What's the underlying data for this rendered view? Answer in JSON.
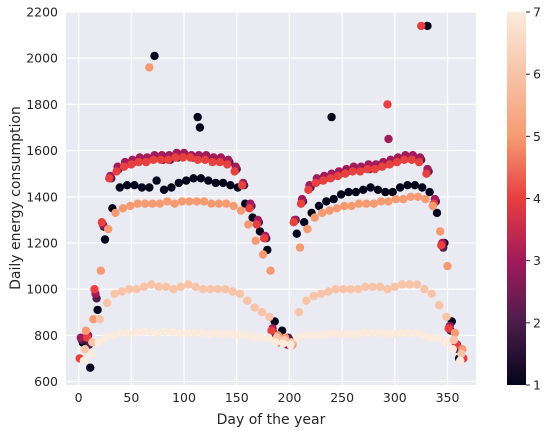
{
  "chart_data": {
    "type": "scatter",
    "title": "",
    "xlabel": "Day of the year",
    "ylabel": "Daily energy consumption",
    "xlim": [
      -12,
      377
    ],
    "ylim": [
      585,
      2200
    ],
    "x_ticks": [
      0,
      50,
      100,
      150,
      200,
      250,
      300,
      350
    ],
    "y_ticks": [
      600,
      800,
      1000,
      1200,
      1400,
      1600,
      1800,
      2000,
      2200
    ],
    "grid": true,
    "background": "#eaeaf2",
    "colorbar": {
      "min": 1,
      "max": 7,
      "ticks": [
        1,
        2,
        3,
        4,
        5,
        6,
        7
      ],
      "colormap": "rocket"
    },
    "color_by": "weekday",
    "points": {
      "day": [
        4,
        11,
        18,
        25,
        32,
        39,
        46,
        53,
        60,
        67,
        74,
        81,
        88,
        95,
        102,
        109,
        116,
        123,
        130,
        137,
        144,
        151,
        158,
        165,
        172,
        179,
        186,
        193,
        200,
        207,
        214,
        221,
        228,
        235,
        242,
        249,
        256,
        263,
        270,
        277,
        284,
        291,
        298,
        305,
        312,
        319,
        326,
        333,
        340,
        347,
        354,
        361,
        3,
        10,
        17,
        24,
        31,
        38,
        45,
        52,
        59,
        66,
        73,
        80,
        87,
        94,
        101,
        108,
        115,
        122,
        129,
        136,
        143,
        150,
        157,
        164,
        171,
        178,
        185,
        192,
        199,
        206,
        213,
        220,
        227,
        234,
        241,
        248,
        255,
        262,
        269,
        276,
        283,
        290,
        297,
        304,
        311,
        318,
        325,
        332,
        339,
        346,
        353,
        360,
        2,
        9,
        16,
        23,
        30,
        37,
        44,
        51,
        58,
        65,
        72,
        79,
        86,
        93,
        100,
        107,
        114,
        121,
        128,
        135,
        142,
        149,
        156,
        163,
        170,
        177,
        184,
        191,
        198,
        205,
        212,
        219,
        226,
        233,
        240,
        247,
        254,
        261,
        268,
        275,
        282,
        289,
        296,
        303,
        310,
        317,
        324,
        331,
        338,
        345,
        352,
        359,
        1,
        8,
        15,
        22,
        29,
        36,
        43,
        50,
        57,
        64,
        71,
        78,
        85,
        92,
        99,
        106,
        113,
        120,
        127,
        134,
        141,
        148,
        155,
        162,
        169,
        176,
        183,
        190,
        197,
        204,
        211,
        218,
        225,
        232,
        239,
        246,
        253,
        260,
        267,
        274,
        281,
        288,
        295,
        302,
        309,
        316,
        323,
        330,
        337,
        344,
        351,
        358,
        365,
        7,
        14,
        21,
        28,
        35,
        42,
        49,
        56,
        63,
        70,
        77,
        84,
        91,
        98,
        105,
        112,
        119,
        126,
        133,
        140,
        147,
        154,
        161,
        168,
        175,
        182,
        189,
        196,
        203,
        210,
        217,
        224,
        231,
        238,
        245,
        252,
        259,
        266,
        273,
        280,
        287,
        294,
        301,
        308,
        315,
        322,
        329,
        336,
        343,
        350,
        357,
        364,
        6,
        13,
        20,
        27,
        34,
        41,
        48,
        55,
        62,
        69,
        76,
        83,
        90,
        97,
        104,
        111,
        118,
        125,
        132,
        139,
        146,
        153,
        160,
        167,
        174,
        181,
        188,
        195,
        202,
        209,
        216,
        223,
        230,
        237,
        244,
        251,
        258,
        265,
        272,
        279,
        286,
        293,
        300,
        307,
        314,
        321,
        328,
        335,
        342,
        349,
        356,
        363,
        5,
        12,
        19,
        26,
        33,
        40,
        47,
        54,
        61,
        68,
        75,
        82,
        89,
        96,
        103,
        110,
        117,
        124,
        131,
        138,
        145,
        152,
        159,
        166,
        173,
        180,
        187,
        194,
        201,
        208,
        215,
        222,
        229,
        236,
        243,
        250,
        257,
        264,
        271,
        278,
        285,
        292,
        299,
        306,
        313,
        320,
        327,
        334,
        341,
        348,
        355,
        362,
        72,
        67,
        331,
        325,
        113,
        115,
        240,
        293,
        294
      ],
      "consumption": [
        768,
        660,
        910,
        1215,
        1350,
        1440,
        1450,
        1450,
        1440,
        1440,
        1470,
        1430,
        1440,
        1460,
        1470,
        1480,
        1480,
        1470,
        1460,
        1460,
        1450,
        1440,
        1370,
        1310,
        1250,
        1170,
        860,
        820,
        780,
        1240,
        1290,
        1330,
        1360,
        1380,
        1390,
        1410,
        1420,
        1420,
        1430,
        1440,
        1430,
        1420,
        1420,
        1440,
        1450,
        1450,
        1440,
        1420,
        1330,
        1200,
        860,
        700,
        780,
        760,
        960,
        1270,
        1480,
        1520,
        1540,
        1550,
        1560,
        1560,
        1570,
        1560,
        1560,
        1570,
        1580,
        1570,
        1570,
        1570,
        1560,
        1560,
        1550,
        1520,
        1450,
        1360,
        1290,
        1220,
        810,
        790,
        790,
        1300,
        1380,
        1440,
        1470,
        1480,
        1490,
        1500,
        1510,
        1520,
        1520,
        1520,
        1530,
        1540,
        1550,
        1560,
        1570,
        1570,
        1560,
        1510,
        1380,
        1180,
        820,
        740,
        790,
        800,
        980,
        1280,
        1490,
        1530,
        1550,
        1560,
        1570,
        1570,
        1580,
        1580,
        1580,
        1590,
        1590,
        1580,
        1580,
        1580,
        1570,
        1570,
        1560,
        1530,
        1460,
        1370,
        1300,
        1230,
        830,
        780,
        760,
        1300,
        1390,
        1450,
        1480,
        1490,
        1500,
        1510,
        1520,
        1530,
        1530,
        1540,
        1540,
        1550,
        1560,
        1570,
        1580,
        1580,
        1570,
        1520,
        1390,
        1200,
        840,
        760,
        700,
        790,
        1000,
        1290,
        1480,
        1510,
        1530,
        1540,
        1550,
        1550,
        1560,
        1560,
        1560,
        1570,
        1570,
        1570,
        1560,
        1560,
        1550,
        1550,
        1540,
        1510,
        1450,
        1350,
        1280,
        1220,
        820,
        770,
        780,
        1290,
        1370,
        1430,
        1460,
        1470,
        1480,
        1490,
        1500,
        1510,
        1510,
        1520,
        1520,
        1530,
        1540,
        1550,
        1560,
        1560,
        1550,
        1500,
        1370,
        1190,
        830,
        760,
        700,
        820,
        870,
        1080,
        1260,
        1330,
        1350,
        1360,
        1370,
        1370,
        1370,
        1370,
        1380,
        1370,
        1380,
        1380,
        1380,
        1380,
        1370,
        1370,
        1370,
        1360,
        1340,
        1280,
        1210,
        1150,
        1080,
        800,
        790,
        760,
        1180,
        1260,
        1310,
        1330,
        1340,
        1350,
        1360,
        1360,
        1370,
        1370,
        1370,
        1380,
        1380,
        1390,
        1390,
        1400,
        1400,
        1390,
        1360,
        1250,
        1100,
        810,
        740,
        740,
        770,
        870,
        940,
        980,
        990,
        1000,
        1000,
        1010,
        1020,
        1010,
        1010,
        1000,
        1010,
        1020,
        1010,
        1000,
        1000,
        1000,
        1000,
        990,
        980,
        950,
        920,
        900,
        880,
        790,
        780,
        770,
        900,
        950,
        970,
        980,
        990,
        1000,
        1000,
        1000,
        1000,
        1010,
        1010,
        1010,
        1000,
        1010,
        1020,
        1020,
        1020,
        1000,
        980,
        930,
        880,
        780,
        720,
        690,
        720,
        770,
        790,
        800,
        810,
        810,
        810,
        815,
        815,
        810,
        815,
        815,
        810,
        810,
        810,
        810,
        805,
        810,
        805,
        805,
        800,
        800,
        795,
        790,
        790,
        770,
        765,
        760,
        790,
        800,
        800,
        800,
        805,
        805,
        805,
        805,
        805,
        810,
        810,
        810,
        805,
        805,
        810,
        810,
        810,
        800,
        790,
        790,
        770,
        740,
        690,
        2010,
        1960,
        2140,
        2140,
        1745,
        1700,
        1745,
        1800,
        1650
      ],
      "weekday": [
        1,
        1,
        1,
        1,
        1,
        1,
        1,
        1,
        1,
        1,
        1,
        1,
        1,
        1,
        1,
        1,
        1,
        1,
        1,
        1,
        1,
        1,
        1,
        1,
        1,
        1,
        1,
        1,
        1,
        1,
        1,
        1,
        1,
        1,
        1,
        1,
        1,
        1,
        1,
        1,
        1,
        1,
        1,
        1,
        1,
        1,
        1,
        1,
        1,
        1,
        1,
        1,
        2,
        2,
        2,
        2,
        2,
        2,
        2,
        2,
        2,
        2,
        2,
        2,
        2,
        2,
        2,
        2,
        2,
        2,
        2,
        2,
        2,
        2,
        2,
        2,
        2,
        2,
        2,
        2,
        2,
        2,
        2,
        2,
        2,
        2,
        2,
        2,
        2,
        2,
        2,
        2,
        2,
        2,
        2,
        2,
        2,
        2,
        2,
        2,
        2,
        2,
        2,
        2,
        3,
        3,
        3,
        3,
        3,
        3,
        3,
        3,
        3,
        3,
        3,
        3,
        3,
        3,
        3,
        3,
        3,
        3,
        3,
        3,
        3,
        3,
        3,
        3,
        3,
        3,
        3,
        3,
        3,
        3,
        3,
        3,
        3,
        3,
        3,
        3,
        3,
        3,
        3,
        3,
        3,
        3,
        3,
        3,
        3,
        3,
        3,
        3,
        3,
        3,
        3,
        3,
        4,
        4,
        4,
        4,
        4,
        4,
        4,
        4,
        4,
        4,
        4,
        4,
        4,
        4,
        4,
        4,
        4,
        4,
        4,
        4,
        4,
        4,
        4,
        4,
        4,
        4,
        4,
        4,
        4,
        4,
        4,
        4,
        4,
        4,
        4,
        4,
        4,
        4,
        4,
        4,
        4,
        4,
        4,
        4,
        4,
        4,
        4,
        4,
        4,
        4,
        4,
        4,
        4,
        5,
        5,
        5,
        5,
        5,
        5,
        5,
        5,
        5,
        5,
        5,
        5,
        5,
        5,
        5,
        5,
        5,
        5,
        5,
        5,
        5,
        5,
        5,
        5,
        5,
        5,
        5,
        5,
        5,
        5,
        5,
        5,
        5,
        5,
        5,
        5,
        5,
        5,
        5,
        5,
        5,
        5,
        5,
        5,
        5,
        5,
        5,
        5,
        5,
        5,
        5,
        5,
        6,
        6,
        6,
        6,
        6,
        6,
        6,
        6,
        6,
        6,
        6,
        6,
        6,
        6,
        6,
        6,
        6,
        6,
        6,
        6,
        6,
        6,
        6,
        6,
        6,
        6,
        6,
        6,
        6,
        6,
        6,
        6,
        6,
        6,
        6,
        6,
        6,
        6,
        6,
        6,
        6,
        6,
        6,
        6,
        6,
        6,
        6,
        6,
        6,
        6,
        6,
        6,
        7,
        7,
        7,
        7,
        7,
        7,
        7,
        7,
        7,
        7,
        7,
        7,
        7,
        7,
        7,
        7,
        7,
        7,
        7,
        7,
        7,
        7,
        7,
        7,
        7,
        7,
        7,
        7,
        7,
        7,
        7,
        7,
        7,
        7,
        7,
        7,
        7,
        7,
        7,
        7,
        7,
        7,
        7,
        7,
        7,
        7,
        7,
        7,
        7,
        7,
        7,
        7,
        1,
        5,
        1,
        4,
        1,
        1,
        1,
        4,
        3
      ]
    }
  }
}
